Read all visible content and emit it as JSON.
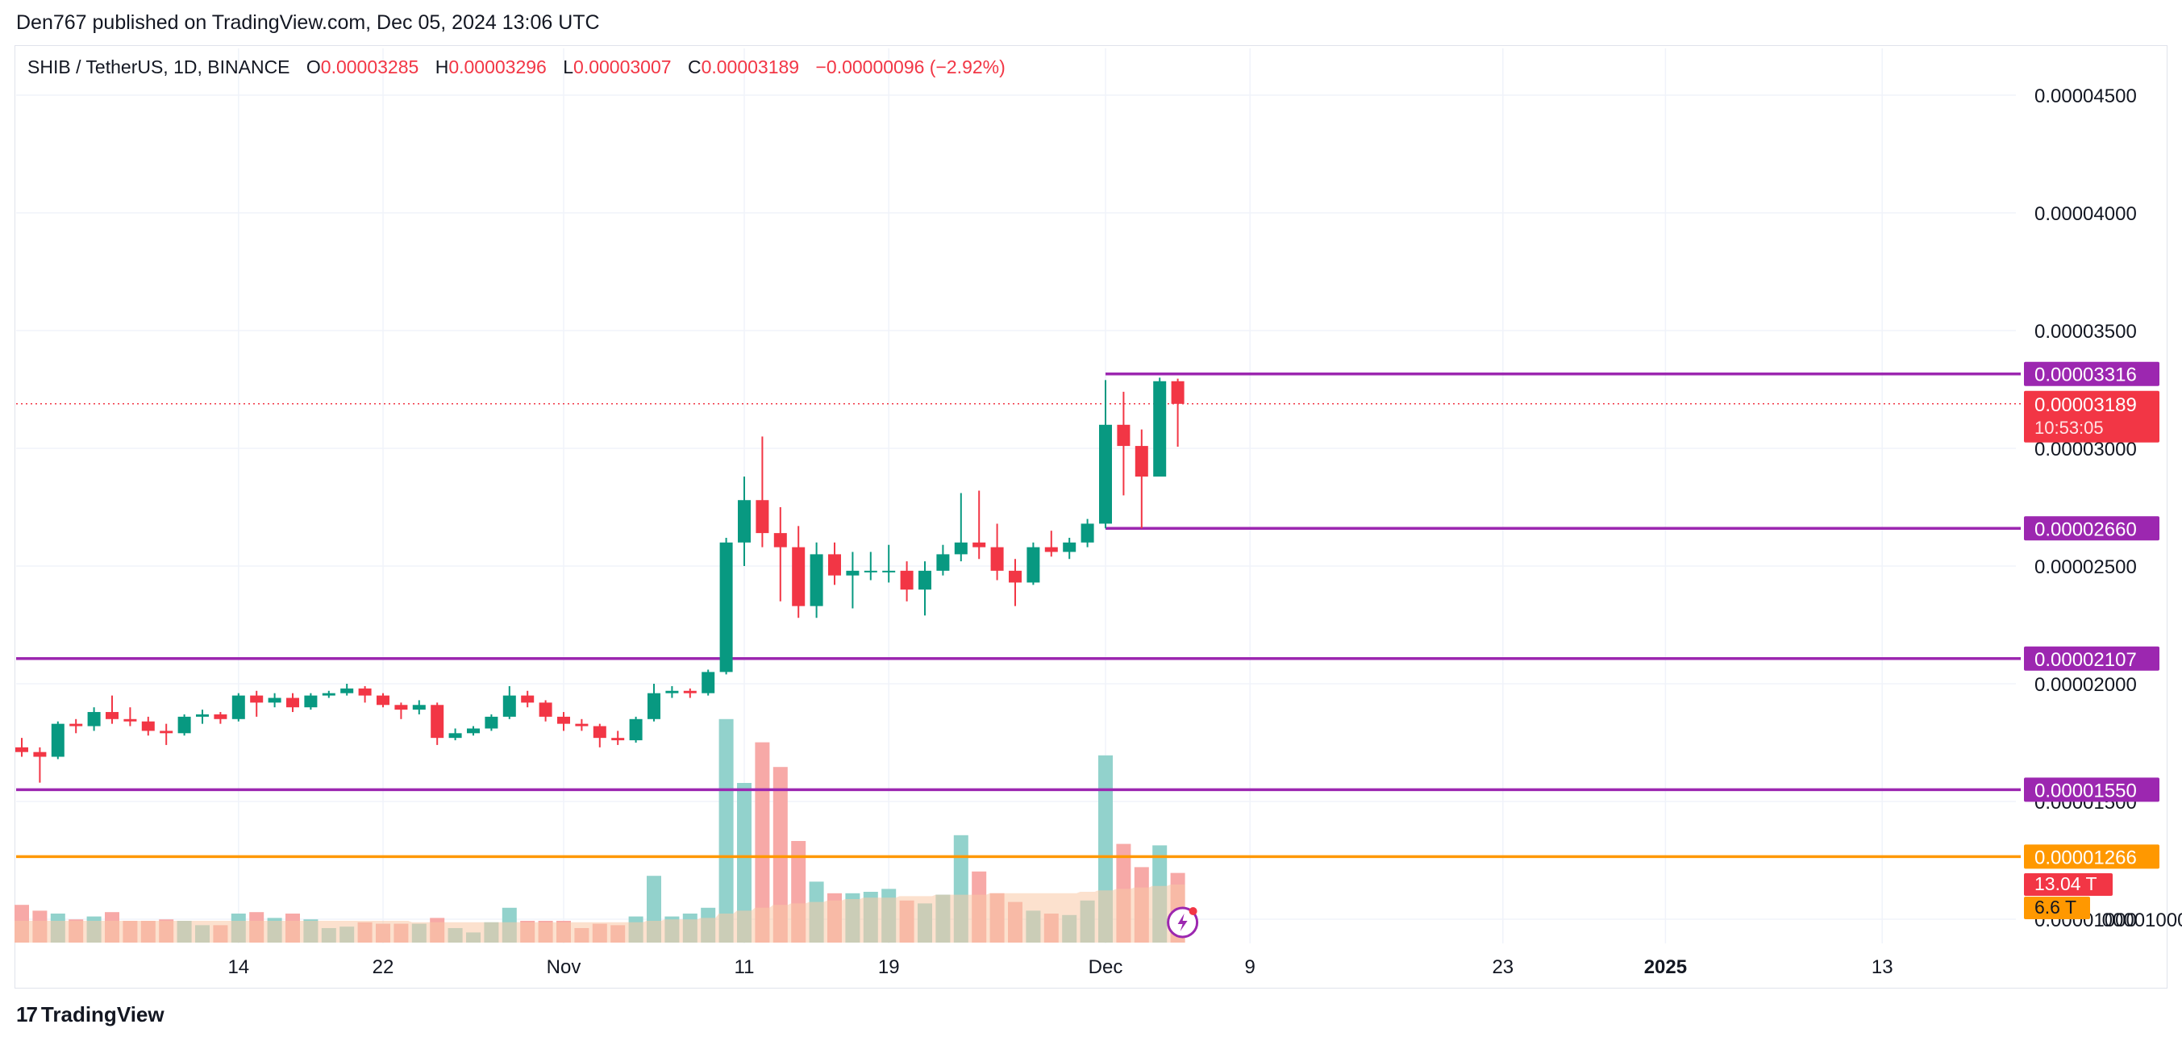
{
  "header": {
    "published": "Den767 published on TradingView.com, Dec 05, 2024 13:06 UTC"
  },
  "legend": {
    "symbol": "SHIB / TetherUS, 1D, BINANCE",
    "o_label": "O",
    "o": "0.00003285",
    "h_label": "H",
    "h": "0.00003296",
    "l_label": "L",
    "l": "0.00003007",
    "c_label": "C",
    "c": "0.00003189",
    "change": "−0.00000096 (−2.92%)"
  },
  "footer": {
    "brand": "TradingView",
    "brand_icon": "tradingview-logo-icon"
  },
  "colors": {
    "up": "#089981",
    "down": "#f23645",
    "level": "#9c27b0",
    "orange": "#ff9800",
    "grid": "#f0f3fa",
    "vol_up": "#92d2cc",
    "vol_down": "#f7a9a7",
    "vol_ma": "#f9c9a6"
  },
  "chart_data": {
    "type": "candlestick",
    "symbol": "SHIB / TetherUS",
    "interval": "1D",
    "exchange": "BINANCE",
    "y_axis": {
      "scale": "linear",
      "ylim": [
        9e-06,
        4.65e-05
      ],
      "ticks": [
        "0.00004500",
        "0.00004000",
        "0.00003500",
        "0.00003000",
        "0.00002500",
        "0.00002000",
        "0.00001500",
        "0.00001000"
      ]
    },
    "x_axis": {
      "ticks": [
        {
          "label": "14",
          "date": "2024-10-14"
        },
        {
          "label": "22",
          "date": "2024-10-22"
        },
        {
          "label": "Nov",
          "date": "2024-11-01"
        },
        {
          "label": "11",
          "date": "2024-11-11"
        },
        {
          "label": "19",
          "date": "2024-11-19"
        },
        {
          "label": "Dec",
          "date": "2024-12-01"
        },
        {
          "label": "9",
          "date": "2024-12-09"
        },
        {
          "label": "23",
          "date": "2024-12-23"
        },
        {
          "label": "2025",
          "date": "2025-01-01",
          "bold": true
        },
        {
          "label": "13",
          "date": "2025-01-13"
        }
      ]
    },
    "candles": [
      {
        "date": "2024-10-02",
        "o": 1.73e-05,
        "h": 1.77e-05,
        "l": 1.69e-05,
        "c": 1.71e-05
      },
      {
        "date": "2024-10-03",
        "o": 1.71e-05,
        "h": 1.73e-05,
        "l": 1.58e-05,
        "c": 1.69e-05
      },
      {
        "date": "2024-10-04",
        "o": 1.69e-05,
        "h": 1.84e-05,
        "l": 1.68e-05,
        "c": 1.83e-05
      },
      {
        "date": "2024-10-05",
        "o": 1.83e-05,
        "h": 1.85e-05,
        "l": 1.79e-05,
        "c": 1.82e-05
      },
      {
        "date": "2024-10-06",
        "o": 1.82e-05,
        "h": 1.9e-05,
        "l": 1.8e-05,
        "c": 1.88e-05
      },
      {
        "date": "2024-10-07",
        "o": 1.88e-05,
        "h": 1.95e-05,
        "l": 1.83e-05,
        "c": 1.85e-05
      },
      {
        "date": "2024-10-08",
        "o": 1.85e-05,
        "h": 1.9e-05,
        "l": 1.82e-05,
        "c": 1.84e-05
      },
      {
        "date": "2024-10-09",
        "o": 1.84e-05,
        "h": 1.86e-05,
        "l": 1.78e-05,
        "c": 1.8e-05
      },
      {
        "date": "2024-10-10",
        "o": 1.8e-05,
        "h": 1.83e-05,
        "l": 1.74e-05,
        "c": 1.79e-05
      },
      {
        "date": "2024-10-11",
        "o": 1.79e-05,
        "h": 1.87e-05,
        "l": 1.78e-05,
        "c": 1.86e-05
      },
      {
        "date": "2024-10-12",
        "o": 1.86e-05,
        "h": 1.89e-05,
        "l": 1.83e-05,
        "c": 1.87e-05
      },
      {
        "date": "2024-10-13",
        "o": 1.87e-05,
        "h": 1.88e-05,
        "l": 1.83e-05,
        "c": 1.85e-05
      },
      {
        "date": "2024-10-14",
        "o": 1.85e-05,
        "h": 1.96e-05,
        "l": 1.84e-05,
        "c": 1.95e-05
      },
      {
        "date": "2024-10-15",
        "o": 1.95e-05,
        "h": 1.97e-05,
        "l": 1.86e-05,
        "c": 1.92e-05
      },
      {
        "date": "2024-10-16",
        "o": 1.92e-05,
        "h": 1.96e-05,
        "l": 1.9e-05,
        "c": 1.94e-05
      },
      {
        "date": "2024-10-17",
        "o": 1.94e-05,
        "h": 1.96e-05,
        "l": 1.88e-05,
        "c": 1.9e-05
      },
      {
        "date": "2024-10-18",
        "o": 1.9e-05,
        "h": 1.96e-05,
        "l": 1.89e-05,
        "c": 1.95e-05
      },
      {
        "date": "2024-10-19",
        "o": 1.95e-05,
        "h": 1.97e-05,
        "l": 1.94e-05,
        "c": 1.96e-05
      },
      {
        "date": "2024-10-20",
        "o": 1.96e-05,
        "h": 2e-05,
        "l": 1.95e-05,
        "c": 1.98e-05
      },
      {
        "date": "2024-10-21",
        "o": 1.98e-05,
        "h": 1.99e-05,
        "l": 1.92e-05,
        "c": 1.95e-05
      },
      {
        "date": "2024-10-22",
        "o": 1.95e-05,
        "h": 1.96e-05,
        "l": 1.9e-05,
        "c": 1.91e-05
      },
      {
        "date": "2024-10-23",
        "o": 1.91e-05,
        "h": 1.92e-05,
        "l": 1.85e-05,
        "c": 1.89e-05
      },
      {
        "date": "2024-10-24",
        "o": 1.89e-05,
        "h": 1.93e-05,
        "l": 1.87e-05,
        "c": 1.91e-05
      },
      {
        "date": "2024-10-25",
        "o": 1.91e-05,
        "h": 1.92e-05,
        "l": 1.74e-05,
        "c": 1.77e-05
      },
      {
        "date": "2024-10-26",
        "o": 1.77e-05,
        "h": 1.81e-05,
        "l": 1.76e-05,
        "c": 1.79e-05
      },
      {
        "date": "2024-10-27",
        "o": 1.79e-05,
        "h": 1.82e-05,
        "l": 1.78e-05,
        "c": 1.81e-05
      },
      {
        "date": "2024-10-28",
        "o": 1.81e-05,
        "h": 1.87e-05,
        "l": 1.8e-05,
        "c": 1.86e-05
      },
      {
        "date": "2024-10-29",
        "o": 1.86e-05,
        "h": 1.99e-05,
        "l": 1.85e-05,
        "c": 1.95e-05
      },
      {
        "date": "2024-10-30",
        "o": 1.95e-05,
        "h": 1.97e-05,
        "l": 1.9e-05,
        "c": 1.92e-05
      },
      {
        "date": "2024-10-31",
        "o": 1.92e-05,
        "h": 1.93e-05,
        "l": 1.84e-05,
        "c": 1.86e-05
      },
      {
        "date": "2024-11-01",
        "o": 1.86e-05,
        "h": 1.88e-05,
        "l": 1.8e-05,
        "c": 1.83e-05
      },
      {
        "date": "2024-11-02",
        "o": 1.83e-05,
        "h": 1.85e-05,
        "l": 1.8e-05,
        "c": 1.82e-05
      },
      {
        "date": "2024-11-03",
        "o": 1.82e-05,
        "h": 1.83e-05,
        "l": 1.73e-05,
        "c": 1.77e-05
      },
      {
        "date": "2024-11-04",
        "o": 1.77e-05,
        "h": 1.8e-05,
        "l": 1.74e-05,
        "c": 1.76e-05
      },
      {
        "date": "2024-11-05",
        "o": 1.76e-05,
        "h": 1.86e-05,
        "l": 1.75e-05,
        "c": 1.85e-05
      },
      {
        "date": "2024-11-06",
        "o": 1.85e-05,
        "h": 2e-05,
        "l": 1.84e-05,
        "c": 1.96e-05
      },
      {
        "date": "2024-11-07",
        "o": 1.96e-05,
        "h": 1.99e-05,
        "l": 1.94e-05,
        "c": 1.97e-05
      },
      {
        "date": "2024-11-08",
        "o": 1.97e-05,
        "h": 1.98e-05,
        "l": 1.94e-05,
        "c": 1.96e-05
      },
      {
        "date": "2024-11-09",
        "o": 1.96e-05,
        "h": 2.06e-05,
        "l": 1.95e-05,
        "c": 2.05e-05
      },
      {
        "date": "2024-11-10",
        "o": 2.05e-05,
        "h": 2.62e-05,
        "l": 2.04e-05,
        "c": 2.6e-05
      },
      {
        "date": "2024-11-11",
        "o": 2.6e-05,
        "h": 2.88e-05,
        "l": 2.5e-05,
        "c": 2.78e-05
      },
      {
        "date": "2024-11-12",
        "o": 2.78e-05,
        "h": 3.05e-05,
        "l": 2.58e-05,
        "c": 2.64e-05
      },
      {
        "date": "2024-11-13",
        "o": 2.64e-05,
        "h": 2.75e-05,
        "l": 2.35e-05,
        "c": 2.58e-05
      },
      {
        "date": "2024-11-14",
        "o": 2.58e-05,
        "h": 2.67e-05,
        "l": 2.28e-05,
        "c": 2.33e-05
      },
      {
        "date": "2024-11-15",
        "o": 2.33e-05,
        "h": 2.6e-05,
        "l": 2.28e-05,
        "c": 2.55e-05
      },
      {
        "date": "2024-11-16",
        "o": 2.55e-05,
        "h": 2.6e-05,
        "l": 2.42e-05,
        "c": 2.46e-05
      },
      {
        "date": "2024-11-17",
        "o": 2.46e-05,
        "h": 2.56e-05,
        "l": 2.32e-05,
        "c": 2.48e-05
      },
      {
        "date": "2024-11-18",
        "o": 2.48e-05,
        "h": 2.56e-05,
        "l": 2.44e-05,
        "c": 2.48e-05
      },
      {
        "date": "2024-11-19",
        "o": 2.48e-05,
        "h": 2.59e-05,
        "l": 2.43e-05,
        "c": 2.48e-05
      },
      {
        "date": "2024-11-20",
        "o": 2.48e-05,
        "h": 2.52e-05,
        "l": 2.35e-05,
        "c": 2.4e-05
      },
      {
        "date": "2024-11-21",
        "o": 2.4e-05,
        "h": 2.52e-05,
        "l": 2.29e-05,
        "c": 2.48e-05
      },
      {
        "date": "2024-11-22",
        "o": 2.48e-05,
        "h": 2.59e-05,
        "l": 2.46e-05,
        "c": 2.55e-05
      },
      {
        "date": "2024-11-23",
        "o": 2.55e-05,
        "h": 2.81e-05,
        "l": 2.52e-05,
        "c": 2.6e-05
      },
      {
        "date": "2024-11-24",
        "o": 2.6e-05,
        "h": 2.82e-05,
        "l": 2.53e-05,
        "c": 2.58e-05
      },
      {
        "date": "2024-11-25",
        "o": 2.58e-05,
        "h": 2.68e-05,
        "l": 2.44e-05,
        "c": 2.48e-05
      },
      {
        "date": "2024-11-26",
        "o": 2.48e-05,
        "h": 2.53e-05,
        "l": 2.33e-05,
        "c": 2.43e-05
      },
      {
        "date": "2024-11-27",
        "o": 2.43e-05,
        "h": 2.6e-05,
        "l": 2.42e-05,
        "c": 2.58e-05
      },
      {
        "date": "2024-11-28",
        "o": 2.58e-05,
        "h": 2.65e-05,
        "l": 2.54e-05,
        "c": 2.56e-05
      },
      {
        "date": "2024-11-29",
        "o": 2.56e-05,
        "h": 2.62e-05,
        "l": 2.53e-05,
        "c": 2.6e-05
      },
      {
        "date": "2024-11-30",
        "o": 2.6e-05,
        "h": 2.7e-05,
        "l": 2.58e-05,
        "c": 2.68e-05
      },
      {
        "date": "2024-12-01",
        "o": 2.68e-05,
        "h": 3.29e-05,
        "l": 2.66e-05,
        "c": 3.1e-05
      },
      {
        "date": "2024-12-02",
        "o": 3.1e-05,
        "h": 3.24e-05,
        "l": 2.8e-05,
        "c": 3.01e-05
      },
      {
        "date": "2024-12-03",
        "o": 3.01e-05,
        "h": 3.08e-05,
        "l": 2.66e-05,
        "c": 2.88e-05
      },
      {
        "date": "2024-12-04",
        "o": 2.88e-05,
        "h": 3.3e-05,
        "l": 2.88e-05,
        "c": 3.285e-05
      },
      {
        "date": "2024-12-05",
        "o": 3.285e-05,
        "h": 3.296e-05,
        "l": 3.007e-05,
        "c": 3.189e-05
      }
    ],
    "volume": [
      {
        "date": "2024-10-02",
        "dir": "down",
        "v": 2.6
      },
      {
        "date": "2024-10-03",
        "dir": "down",
        "v": 2.2
      },
      {
        "date": "2024-10-04",
        "dir": "up",
        "v": 2.0
      },
      {
        "date": "2024-10-05",
        "dir": "down",
        "v": 1.6
      },
      {
        "date": "2024-10-06",
        "dir": "up",
        "v": 1.8
      },
      {
        "date": "2024-10-07",
        "dir": "down",
        "v": 2.1
      },
      {
        "date": "2024-10-08",
        "dir": "down",
        "v": 1.5
      },
      {
        "date": "2024-10-09",
        "dir": "down",
        "v": 1.5
      },
      {
        "date": "2024-10-10",
        "dir": "down",
        "v": 1.6
      },
      {
        "date": "2024-10-11",
        "dir": "up",
        "v": 1.5
      },
      {
        "date": "2024-10-12",
        "dir": "up",
        "v": 1.2
      },
      {
        "date": "2024-10-13",
        "dir": "down",
        "v": 1.2
      },
      {
        "date": "2024-10-14",
        "dir": "up",
        "v": 2.0
      },
      {
        "date": "2024-10-15",
        "dir": "down",
        "v": 2.1
      },
      {
        "date": "2024-10-16",
        "dir": "up",
        "v": 1.7
      },
      {
        "date": "2024-10-17",
        "dir": "down",
        "v": 2.0
      },
      {
        "date": "2024-10-18",
        "dir": "up",
        "v": 1.6
      },
      {
        "date": "2024-10-19",
        "dir": "up",
        "v": 1.0
      },
      {
        "date": "2024-10-20",
        "dir": "up",
        "v": 1.1
      },
      {
        "date": "2024-10-21",
        "dir": "down",
        "v": 1.4
      },
      {
        "date": "2024-10-22",
        "dir": "down",
        "v": 1.3
      },
      {
        "date": "2024-10-23",
        "dir": "down",
        "v": 1.3
      },
      {
        "date": "2024-10-24",
        "dir": "up",
        "v": 1.3
      },
      {
        "date": "2024-10-25",
        "dir": "down",
        "v": 1.7
      },
      {
        "date": "2024-10-26",
        "dir": "up",
        "v": 1.0
      },
      {
        "date": "2024-10-27",
        "dir": "up",
        "v": 0.7
      },
      {
        "date": "2024-10-28",
        "dir": "up",
        "v": 1.4
      },
      {
        "date": "2024-10-29",
        "dir": "up",
        "v": 2.4
      },
      {
        "date": "2024-10-30",
        "dir": "down",
        "v": 1.5
      },
      {
        "date": "2024-10-31",
        "dir": "down",
        "v": 1.5
      },
      {
        "date": "2024-11-01",
        "dir": "down",
        "v": 1.5
      },
      {
        "date": "2024-11-02",
        "dir": "down",
        "v": 1.0
      },
      {
        "date": "2024-11-03",
        "dir": "down",
        "v": 1.3
      },
      {
        "date": "2024-11-04",
        "dir": "down",
        "v": 1.2
      },
      {
        "date": "2024-11-05",
        "dir": "up",
        "v": 1.8
      },
      {
        "date": "2024-11-06",
        "dir": "up",
        "v": 4.6
      },
      {
        "date": "2024-11-07",
        "dir": "up",
        "v": 1.8
      },
      {
        "date": "2024-11-08",
        "dir": "up",
        "v": 2.0
      },
      {
        "date": "2024-11-09",
        "dir": "up",
        "v": 2.4
      },
      {
        "date": "2024-11-10",
        "dir": "up",
        "v": 15.4
      },
      {
        "date": "2024-11-11",
        "dir": "up",
        "v": 11.0
      },
      {
        "date": "2024-11-12",
        "dir": "down",
        "v": 13.8
      },
      {
        "date": "2024-11-13",
        "dir": "down",
        "v": 12.1
      },
      {
        "date": "2024-11-14",
        "dir": "down",
        "v": 7.0
      },
      {
        "date": "2024-11-15",
        "dir": "up",
        "v": 4.2
      },
      {
        "date": "2024-11-16",
        "dir": "down",
        "v": 3.4
      },
      {
        "date": "2024-11-17",
        "dir": "up",
        "v": 3.4
      },
      {
        "date": "2024-11-18",
        "dir": "up",
        "v": 3.5
      },
      {
        "date": "2024-11-19",
        "dir": "up",
        "v": 3.7
      },
      {
        "date": "2024-11-20",
        "dir": "down",
        "v": 2.9
      },
      {
        "date": "2024-11-21",
        "dir": "up",
        "v": 2.7
      },
      {
        "date": "2024-11-22",
        "dir": "up",
        "v": 3.3
      },
      {
        "date": "2024-11-23",
        "dir": "up",
        "v": 7.4
      },
      {
        "date": "2024-11-24",
        "dir": "down",
        "v": 4.9
      },
      {
        "date": "2024-11-25",
        "dir": "down",
        "v": 3.4
      },
      {
        "date": "2024-11-26",
        "dir": "down",
        "v": 2.8
      },
      {
        "date": "2024-11-27",
        "dir": "up",
        "v": 2.2
      },
      {
        "date": "2024-11-28",
        "dir": "down",
        "v": 2.0
      },
      {
        "date": "2024-11-29",
        "dir": "up",
        "v": 1.9
      },
      {
        "date": "2024-11-30",
        "dir": "up",
        "v": 2.9
      },
      {
        "date": "2024-12-01",
        "dir": "up",
        "v": 12.9
      },
      {
        "date": "2024-12-02",
        "dir": "down",
        "v": 6.8
      },
      {
        "date": "2024-12-03",
        "dir": "down",
        "v": 5.2
      },
      {
        "date": "2024-12-04",
        "dir": "up",
        "v": 6.7
      },
      {
        "date": "2024-12-05",
        "dir": "down",
        "v": 4.8
      }
    ],
    "volume_ma": [
      1.5,
      1.5,
      1.5,
      1.5,
      1.5,
      1.5,
      1.5,
      1.5,
      1.5,
      1.5,
      1.5,
      1.5,
      1.5,
      1.5,
      1.5,
      1.5,
      1.5,
      1.5,
      1.5,
      1.5,
      1.5,
      1.5,
      1.4,
      1.4,
      1.4,
      1.4,
      1.4,
      1.4,
      1.4,
      1.4,
      1.4,
      1.4,
      1.4,
      1.4,
      1.4,
      1.5,
      1.6,
      1.6,
      1.7,
      2.0,
      2.2,
      2.4,
      2.6,
      2.7,
      2.8,
      2.9,
      3.0,
      3.1,
      3.1,
      3.2,
      3.2,
      3.3,
      3.3,
      3.3,
      3.4,
      3.4,
      3.4,
      3.4,
      3.4,
      3.5,
      3.6,
      3.7,
      3.8,
      3.9,
      4.0
    ],
    "levels": [
      {
        "price": 3.316e-05,
        "label": "0.00003316",
        "color": "#9c27b0",
        "start_date": "2024-12-01"
      },
      {
        "price": 2.66e-05,
        "label": "0.00002660",
        "color": "#9c27b0",
        "start_date": "2024-12-01"
      },
      {
        "price": 2.107e-05,
        "label": "0.00002107",
        "color": "#9c27b0",
        "start_date": null
      },
      {
        "price": 1.55e-05,
        "label": "0.00001550",
        "color": "#9c27b0",
        "start_date": null
      },
      {
        "price": 1.266e-05,
        "label": "0.00001266",
        "color": "#ff9800",
        "start_date": null
      }
    ],
    "last_price": {
      "price": 3.189e-05,
      "label": "0.00003189",
      "countdown": "10:53:05"
    },
    "volume_badges": [
      {
        "label": "13.04 T",
        "color": "#f23645"
      },
      {
        "label": "6.6 T",
        "color": "#ff9800"
      }
    ],
    "price_axis_partial": {
      "bottom_label_visible": ".00001000"
    },
    "grid": true
  }
}
